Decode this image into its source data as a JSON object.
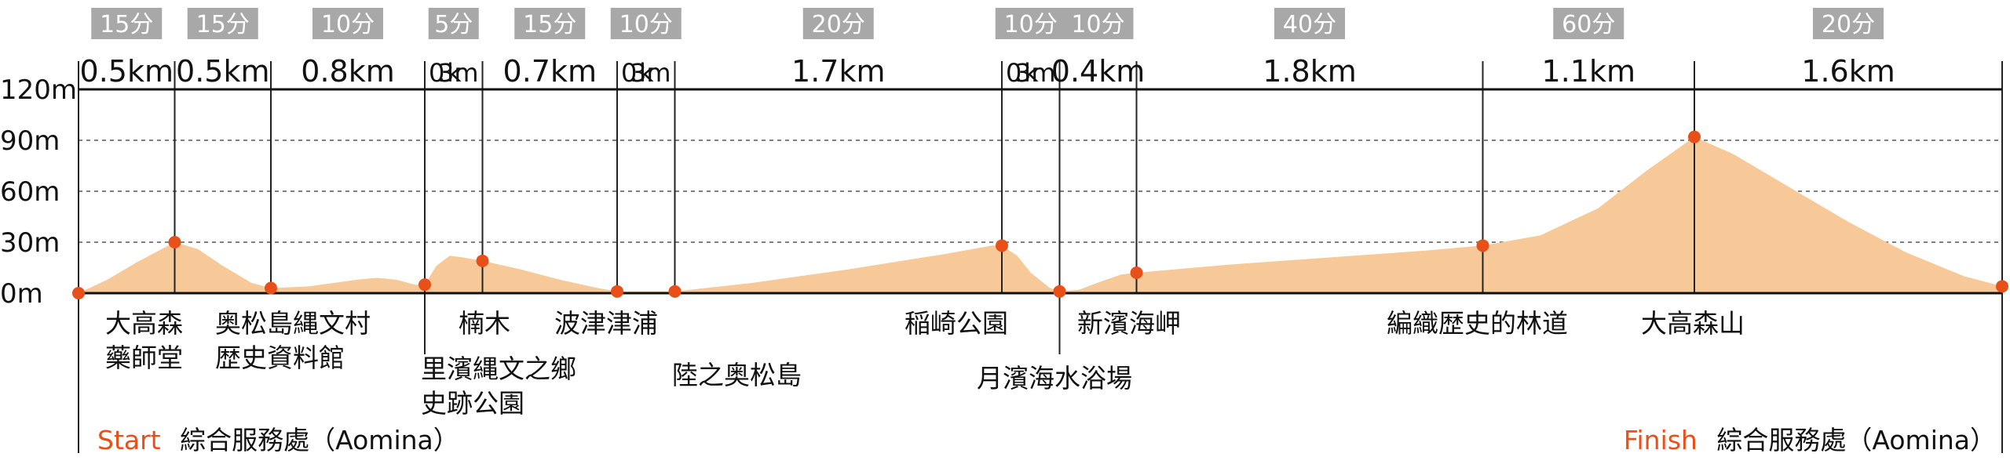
{
  "chart_data": {
    "type": "area",
    "title": "",
    "xlabel": "",
    "ylabel": "",
    "ylim": [
      0,
      120
    ],
    "y_ticks": [
      {
        "value": 0,
        "label": "0m"
      },
      {
        "value": 30,
        "label": "30m"
      },
      {
        "value": 60,
        "label": "60m"
      },
      {
        "value": 90,
        "label": "90m"
      },
      {
        "value": 120,
        "label": "120m"
      }
    ],
    "grid": "dashed-horizontal",
    "colors": {
      "area": "#f8c998",
      "marker": "#e8501a",
      "badge": "#a8a8a8",
      "axis": "#111111"
    },
    "x_unit": "km",
    "segments": [
      {
        "distance_km": 0.5,
        "distance_label": "0.5km",
        "time_label": "15分"
      },
      {
        "distance_km": 0.5,
        "distance_label": "0.5km",
        "time_label": "15分"
      },
      {
        "distance_km": 0.8,
        "distance_label": "0.8km",
        "time_label": "10分"
      },
      {
        "distance_km": 0.3,
        "distance_label": "0.3km",
        "time_label": "5分"
      },
      {
        "distance_km": 0.7,
        "distance_label": "0.7km",
        "time_label": "15分"
      },
      {
        "distance_km": 0.3,
        "distance_label": "0.3km",
        "time_label": "10分"
      },
      {
        "distance_km": 1.7,
        "distance_label": "1.7km",
        "time_label": "20分"
      },
      {
        "distance_km": 0.3,
        "distance_label": "0.3km",
        "time_label": "10分"
      },
      {
        "distance_km": 0.4,
        "distance_label": "0.4km",
        "time_label": "10分"
      },
      {
        "distance_km": 1.8,
        "distance_label": "1.8km",
        "time_label": "40分"
      },
      {
        "distance_km": 1.1,
        "distance_label": "1.1km",
        "time_label": "60分"
      },
      {
        "distance_km": 1.6,
        "distance_label": "1.6km",
        "time_label": "20分"
      }
    ],
    "stops": [
      {
        "km": 0.0,
        "elev": 0,
        "name": []
      },
      {
        "km": 0.5,
        "elev": 30,
        "name": [
          "大高森",
          "藥師堂"
        ]
      },
      {
        "km": 1.0,
        "elev": 3,
        "name": [
          "奥松島縄文村",
          "歴史資料館"
        ]
      },
      {
        "km": 1.8,
        "elev": 5,
        "name": [
          "里濱縄文之鄉",
          "史跡公園"
        ]
      },
      {
        "km": 2.1,
        "elev": 19,
        "name": [
          "楠木"
        ]
      },
      {
        "km": 2.8,
        "elev": 1,
        "name": [
          "波津津浦"
        ]
      },
      {
        "km": 3.1,
        "elev": 1,
        "name": [
          "陸之奥松島"
        ]
      },
      {
        "km": 4.8,
        "elev": 28,
        "name": [
          "稲崎公園"
        ]
      },
      {
        "km": 5.1,
        "elev": 1,
        "name": [
          "月濱海水浴場"
        ]
      },
      {
        "km": 5.5,
        "elev": 12,
        "name": [
          "新濱海岬"
        ]
      },
      {
        "km": 7.3,
        "elev": 28,
        "name": [
          "編織歴史的林道"
        ]
      },
      {
        "km": 8.4,
        "elev": 92,
        "name": [
          "大高森山"
        ]
      },
      {
        "km": 10.0,
        "elev": 4,
        "name": []
      }
    ],
    "profile": [
      [
        0.0,
        0
      ],
      [
        0.15,
        8
      ],
      [
        0.3,
        18
      ],
      [
        0.45,
        27
      ],
      [
        0.5,
        30
      ],
      [
        0.62,
        26
      ],
      [
        0.75,
        16
      ],
      [
        0.9,
        6
      ],
      [
        1.0,
        3
      ],
      [
        1.2,
        4
      ],
      [
        1.45,
        8
      ],
      [
        1.55,
        9
      ],
      [
        1.65,
        8
      ],
      [
        1.75,
        5
      ],
      [
        1.8,
        5
      ],
      [
        1.86,
        16
      ],
      [
        1.93,
        22
      ],
      [
        2.0,
        21
      ],
      [
        2.1,
        19
      ],
      [
        2.3,
        14
      ],
      [
        2.5,
        8
      ],
      [
        2.7,
        3
      ],
      [
        2.8,
        1
      ],
      [
        3.1,
        1
      ],
      [
        3.5,
        6
      ],
      [
        4.0,
        14
      ],
      [
        4.5,
        23
      ],
      [
        4.75,
        28
      ],
      [
        4.8,
        28
      ],
      [
        4.88,
        22
      ],
      [
        4.95,
        12
      ],
      [
        5.05,
        3
      ],
      [
        5.1,
        1
      ],
      [
        5.2,
        2
      ],
      [
        5.32,
        7
      ],
      [
        5.42,
        11
      ],
      [
        5.5,
        12
      ],
      [
        6.0,
        17
      ],
      [
        6.5,
        21
      ],
      [
        7.0,
        25
      ],
      [
        7.3,
        28
      ],
      [
        7.6,
        34
      ],
      [
        7.9,
        50
      ],
      [
        8.15,
        72
      ],
      [
        8.4,
        92
      ],
      [
        8.6,
        82
      ],
      [
        8.9,
        62
      ],
      [
        9.2,
        42
      ],
      [
        9.5,
        24
      ],
      [
        9.8,
        10
      ],
      [
        10.0,
        4
      ]
    ],
    "start": {
      "accent": "Start",
      "name": "綜合服務處（Aomina）"
    },
    "finish": {
      "accent": "Finish",
      "name": "綜合服務處（Aomina）"
    }
  }
}
